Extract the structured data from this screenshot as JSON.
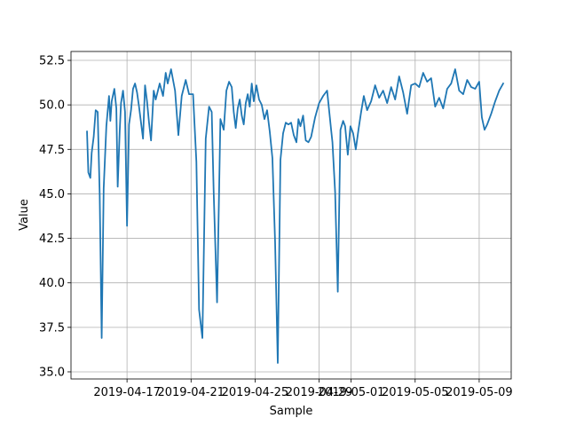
{
  "chart_data": {
    "type": "line",
    "title": "",
    "xlabel": "Sample",
    "ylabel": "Value",
    "grid": true,
    "xlim": [
      "2019-04-13T12:00",
      "2019-05-11T00:00"
    ],
    "ylim": [
      34.6,
      53.0
    ],
    "xticks": [
      {
        "x": "2019-04-17",
        "label": "2019-04-17"
      },
      {
        "x": "2019-04-21",
        "label": "2019-04-21"
      },
      {
        "x": "2019-04-25",
        "label": "2019-04-25"
      },
      {
        "x": "2019-04-29",
        "label": "2019-04-29"
      },
      {
        "x": "2019-05-01",
        "label": "2019-05-01"
      },
      {
        "x": "2019-05-05",
        "label": "2019-05-05"
      },
      {
        "x": "2019-05-09",
        "label": "2019-05-09"
      }
    ],
    "yticks": [
      {
        "y": 35.0,
        "label": "35.0"
      },
      {
        "y": 37.5,
        "label": "37.5"
      },
      {
        "y": 40.0,
        "label": "40.0"
      },
      {
        "y": 42.5,
        "label": "42.5"
      },
      {
        "y": 45.0,
        "label": "45.0"
      },
      {
        "y": 47.5,
        "label": "47.5"
      },
      {
        "y": 50.0,
        "label": "50.0"
      },
      {
        "y": 52.5,
        "label": "52.5"
      }
    ],
    "series": [
      {
        "color": "#1f77b4",
        "x": [
          "2019-04-14T12:00",
          "2019-04-14T14:00",
          "2019-04-14T17:00",
          "2019-04-14T19:00",
          "2019-04-14T22:00",
          "2019-04-15T01:00",
          "2019-04-15T04:00",
          "2019-04-15T07:00",
          "2019-04-15T10:00",
          "2019-04-15T13:00",
          "2019-04-15T17:00",
          "2019-04-15T21:00",
          "2019-04-15T23:00",
          "2019-04-16T01:00",
          "2019-04-16T05:00",
          "2019-04-16T08:00",
          "2019-04-16T10:00",
          "2019-04-16T13:00",
          "2019-04-16T15:00",
          "2019-04-16T18:00",
          "2019-04-16T21:00",
          "2019-04-17T00:00",
          "2019-04-17T03:00",
          "2019-04-17T06:00",
          "2019-04-17T09:00",
          "2019-04-17T12:00",
          "2019-04-17T15:00",
          "2019-04-17T18:00",
          "2019-04-18T00:00",
          "2019-04-18T03:00",
          "2019-04-18T06:00",
          "2019-04-18T09:00",
          "2019-04-18T12:00",
          "2019-04-18T16:00",
          "2019-04-18T19:00",
          "2019-04-19T01:00",
          "2019-04-19T06:00",
          "2019-04-19T10:00",
          "2019-04-19T13:00",
          "2019-04-19T18:00",
          "2019-04-20T00:00",
          "2019-04-20T05:00",
          "2019-04-20T10:00",
          "2019-04-20T16:00",
          "2019-04-20T21:00",
          "2019-04-21T03:00",
          "2019-04-21T08:00",
          "2019-04-21T12:00",
          "2019-04-21T17:00",
          "2019-04-21T22:00",
          "2019-04-22T03:00",
          "2019-04-22T07:00",
          "2019-04-22T10:00",
          "2019-04-22T15:00",
          "2019-04-22T20:00",
          "2019-04-23T01:00",
          "2019-04-23T05:00",
          "2019-04-23T09:00",
          "2019-04-23T13:00",
          "2019-04-23T16:00",
          "2019-04-23T19:00",
          "2019-04-23T22:00",
          "2019-04-24T01:00",
          "2019-04-24T04:00",
          "2019-04-24T07:00",
          "2019-04-24T10:00",
          "2019-04-24T13:00",
          "2019-04-24T16:00",
          "2019-04-24T19:00",
          "2019-04-24T22:00",
          "2019-04-25T02:00",
          "2019-04-25T06:00",
          "2019-04-25T10:00",
          "2019-04-25T14:00",
          "2019-04-25T18:00",
          "2019-04-25T22:00",
          "2019-04-26T02:00",
          "2019-04-26T06:00",
          "2019-04-26T10:00",
          "2019-04-26T14:00",
          "2019-04-26T18:00",
          "2019-04-26T22:00",
          "2019-04-27T02:00",
          "2019-04-27T06:00",
          "2019-04-27T10:00",
          "2019-04-27T14:00",
          "2019-04-27T17:00",
          "2019-04-27T20:00",
          "2019-04-28T00:00",
          "2019-04-28T04:00",
          "2019-04-28T08:00",
          "2019-04-28T12:00",
          "2019-04-28T18:00",
          "2019-04-29T00:00",
          "2019-04-29T06:00",
          "2019-04-29T12:00",
          "2019-04-29T18:00",
          "2019-04-29T20:00",
          "2019-04-30T00:00",
          "2019-04-30T04:00",
          "2019-04-30T08:00",
          "2019-04-30T12:00",
          "2019-04-30T15:00",
          "2019-04-30T19:00",
          "2019-04-30T23:00",
          "2019-05-01T03:00",
          "2019-05-01T07:00",
          "2019-05-01T11:00",
          "2019-05-01T15:00",
          "2019-05-01T19:00",
          "2019-05-02T00:00",
          "2019-05-02T06:00",
          "2019-05-02T12:00",
          "2019-05-02T18:00",
          "2019-05-03T00:00",
          "2019-05-03T06:00",
          "2019-05-03T12:00",
          "2019-05-03T18:00",
          "2019-05-04T00:00",
          "2019-05-04T06:00",
          "2019-05-04T12:00",
          "2019-05-04T18:00",
          "2019-05-05T00:00",
          "2019-05-05T06:00",
          "2019-05-05T12:00",
          "2019-05-05T18:00",
          "2019-05-06T00:00",
          "2019-05-06T06:00",
          "2019-05-06T12:00",
          "2019-05-06T18:00",
          "2019-05-07T00:00",
          "2019-05-07T06:00",
          "2019-05-07T12:00",
          "2019-05-07T18:00",
          "2019-05-08T00:00",
          "2019-05-08T06:00",
          "2019-05-08T12:00",
          "2019-05-08T18:00",
          "2019-05-09T00:00",
          "2019-05-09T04:00",
          "2019-05-09T08:00",
          "2019-05-09T12:00",
          "2019-05-09T18:00",
          "2019-05-10T00:00",
          "2019-05-10T06:00",
          "2019-05-10T12:00"
        ],
        "y": [
          48.5,
          46.2,
          45.9,
          47.3,
          48.2,
          49.7,
          49.6,
          45.0,
          36.9,
          45.3,
          48.8,
          50.5,
          49.1,
          50.2,
          50.9,
          49.8,
          45.4,
          48.5,
          50.1,
          50.8,
          49.6,
          43.2,
          48.9,
          49.7,
          50.9,
          51.2,
          50.7,
          49.9,
          48.1,
          51.1,
          50.2,
          49.0,
          48.0,
          50.8,
          50.3,
          51.2,
          50.5,
          51.8,
          51.2,
          52.0,
          50.8,
          48.3,
          50.5,
          51.4,
          50.6,
          50.6,
          46.8,
          38.5,
          36.9,
          48.1,
          49.9,
          49.6,
          45.0,
          38.9,
          49.2,
          48.6,
          50.8,
          51.3,
          51.0,
          49.6,
          48.7,
          49.8,
          50.3,
          49.4,
          48.9,
          50.1,
          50.6,
          49.9,
          51.2,
          50.2,
          51.1,
          50.3,
          50.0,
          49.2,
          49.7,
          48.5,
          47.0,
          42.3,
          35.5,
          46.9,
          48.4,
          49.0,
          48.9,
          49.0,
          48.3,
          47.9,
          49.2,
          48.8,
          49.4,
          48.0,
          47.9,
          48.2,
          49.3,
          50.1,
          50.5,
          50.8,
          48.6,
          47.9,
          45.1,
          39.5,
          48.6,
          49.1,
          48.8,
          47.2,
          48.8,
          48.4,
          47.5,
          48.6,
          49.6,
          50.5,
          49.7,
          50.2,
          51.1,
          50.4,
          50.8,
          50.1,
          51.0,
          50.3,
          51.6,
          50.7,
          49.5,
          51.1,
          51.2,
          51.0,
          51.8,
          51.3,
          51.5,
          49.9,
          50.4,
          49.8,
          50.9,
          51.2,
          52.0,
          50.8,
          50.6,
          51.4,
          51.0,
          50.9,
          51.3,
          49.3,
          48.6,
          48.9,
          49.5,
          50.2,
          50.8,
          51.2
        ]
      }
    ]
  }
}
